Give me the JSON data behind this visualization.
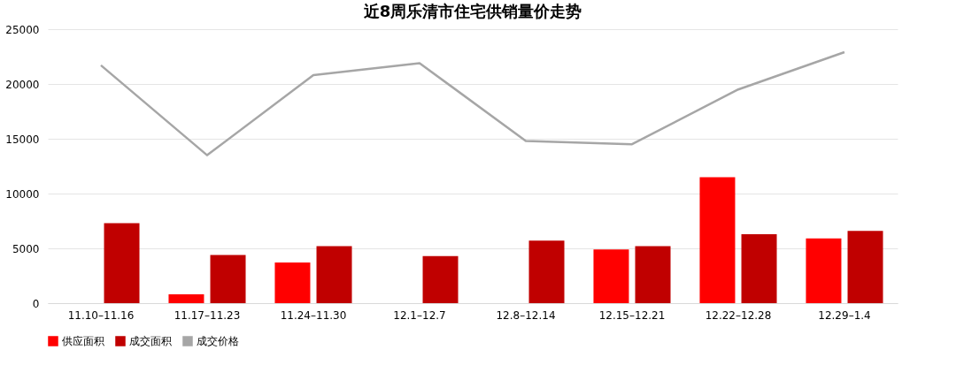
{
  "chart_data": {
    "type": "bar",
    "title": "近8周乐清市住宅供销量价走势",
    "categories": [
      "11.10–11.16",
      "11.17–11.23",
      "11.24–11.30",
      "12.1–12.7",
      "12.8–12.14",
      "12.15–12.21",
      "12.22–12.28",
      "12.29–1.4"
    ],
    "series": [
      {
        "name": "供应面积",
        "color": "#ff0000",
        "values": [
          null,
          800,
          3700,
          null,
          null,
          4900,
          11500,
          5900
        ]
      },
      {
        "name": "成交面积",
        "color": "#c00000",
        "values": [
          7300,
          4400,
          5200,
          4300,
          5700,
          5200,
          6300,
          6600
        ]
      },
      {
        "name": "成交价格",
        "type": "line",
        "color": "#a6a6a6",
        "values": [
          21700,
          13500,
          20800,
          21900,
          14800,
          14500,
          19500,
          22900
        ]
      }
    ],
    "ylim": [
      0,
      25000
    ],
    "yticks": [
      0,
      5000,
      10000,
      15000,
      20000,
      25000
    ],
    "grid": "y",
    "legend": "bottom"
  }
}
